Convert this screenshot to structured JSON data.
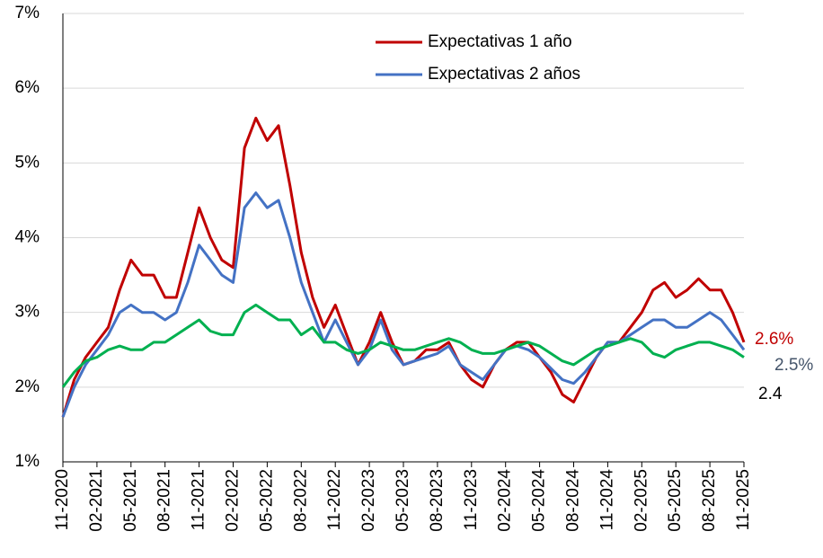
{
  "chart_data": {
    "type": "line",
    "x": [
      "2020-11",
      "2020-12",
      "2021-01",
      "2021-02",
      "2021-03",
      "2021-04",
      "2021-05",
      "2021-06",
      "2021-07",
      "2021-08",
      "2021-09",
      "2021-10",
      "2021-11",
      "2021-12",
      "2022-01",
      "2022-02",
      "2022-03",
      "2022-04",
      "2022-05",
      "2022-06",
      "2022-07",
      "2022-08",
      "2022-09",
      "2022-10",
      "2022-11",
      "2022-12",
      "2023-01",
      "2023-02",
      "2023-03",
      "2023-04",
      "2023-05",
      "2023-06",
      "2023-07",
      "2023-08",
      "2023-09",
      "2023-10",
      "2023-11",
      "2023-12",
      "2024-01",
      "2024-02",
      "2024-03",
      "2024-04",
      "2024-05",
      "2024-06",
      "2024-07",
      "2024-08",
      "2024-09",
      "2024-10",
      "2024-11",
      "2024-12",
      "2025-01",
      "2025-02",
      "2025-03",
      "2025-04",
      "2025-05",
      "2025-06",
      "2025-07",
      "2025-08",
      "2025-09",
      "2025-10",
      "2025-11"
    ],
    "series": [
      {
        "name": "Expectativas 1 año",
        "color": "#c00000",
        "end_label": "2.6%",
        "values": [
          1.6,
          2.1,
          2.4,
          2.6,
          2.8,
          3.3,
          3.7,
          3.5,
          3.5,
          3.2,
          3.2,
          3.8,
          4.4,
          4.0,
          3.7,
          3.6,
          5.2,
          5.6,
          5.3,
          5.5,
          4.7,
          3.8,
          3.2,
          2.8,
          3.1,
          2.7,
          2.3,
          2.6,
          3.0,
          2.6,
          2.3,
          2.35,
          2.5,
          2.5,
          2.6,
          2.3,
          2.1,
          2.0,
          2.3,
          2.5,
          2.6,
          2.6,
          2.4,
          2.2,
          1.9,
          1.8,
          2.1,
          2.4,
          2.6,
          2.6,
          2.8,
          3.0,
          3.3,
          3.4,
          3.2,
          3.3,
          3.45,
          3.3,
          3.3,
          3.0,
          2.6
        ]
      },
      {
        "name": "Expectativas 2 años",
        "color": "#4472c4",
        "end_label": "2.5%",
        "values": [
          1.6,
          2.0,
          2.3,
          2.5,
          2.7,
          3.0,
          3.1,
          3.0,
          3.0,
          2.9,
          3.0,
          3.4,
          3.9,
          3.7,
          3.5,
          3.4,
          4.4,
          4.6,
          4.4,
          4.5,
          4.0,
          3.4,
          3.0,
          2.6,
          2.9,
          2.6,
          2.3,
          2.5,
          2.9,
          2.5,
          2.3,
          2.35,
          2.4,
          2.45,
          2.55,
          2.3,
          2.2,
          2.1,
          2.3,
          2.5,
          2.55,
          2.5,
          2.4,
          2.25,
          2.1,
          2.05,
          2.2,
          2.4,
          2.6,
          2.6,
          2.7,
          2.8,
          2.9,
          2.9,
          2.8,
          2.8,
          2.9,
          3.0,
          2.9,
          2.7,
          2.5
        ]
      },
      {
        "color": "#00b050",
        "end_label": "2.4",
        "values": [
          2.0,
          2.2,
          2.35,
          2.4,
          2.5,
          2.55,
          2.5,
          2.5,
          2.6,
          2.6,
          2.7,
          2.8,
          2.9,
          2.75,
          2.7,
          2.7,
          3.0,
          3.1,
          3.0,
          2.9,
          2.9,
          2.7,
          2.8,
          2.6,
          2.6,
          2.5,
          2.45,
          2.5,
          2.6,
          2.55,
          2.5,
          2.5,
          2.55,
          2.6,
          2.65,
          2.6,
          2.5,
          2.45,
          2.45,
          2.5,
          2.55,
          2.6,
          2.55,
          2.45,
          2.35,
          2.3,
          2.4,
          2.5,
          2.55,
          2.6,
          2.65,
          2.6,
          2.45,
          2.4,
          2.5,
          2.55,
          2.6,
          2.6,
          2.55,
          2.5,
          2.4
        ]
      }
    ],
    "xlim": [
      "2020-11",
      "2025-11"
    ],
    "xticks": [
      {
        "value": "2020-11",
        "label": "11-2020"
      },
      {
        "value": "2021-02",
        "label": "02-2021"
      },
      {
        "value": "2021-05",
        "label": "05-2021"
      },
      {
        "value": "2021-08",
        "label": "08-2021"
      },
      {
        "value": "2021-11",
        "label": "11-2021"
      },
      {
        "value": "2022-02",
        "label": "02-2022"
      },
      {
        "value": "2022-05",
        "label": "05-2022"
      },
      {
        "value": "2022-08",
        "label": "08-2022"
      },
      {
        "value": "2022-11",
        "label": "11-2022"
      },
      {
        "value": "2023-02",
        "label": "02-2023"
      },
      {
        "value": "2023-05",
        "label": "05-2023"
      },
      {
        "value": "2023-08",
        "label": "08-2023"
      },
      {
        "value": "2023-11",
        "label": "11-2023"
      },
      {
        "value": "2024-02",
        "label": "02-2024"
      },
      {
        "value": "2024-05",
        "label": "05-2024"
      },
      {
        "value": "2024-08",
        "label": "08-2024"
      },
      {
        "value": "2024-11",
        "label": "11-2024"
      },
      {
        "value": "2025-02",
        "label": "02-2025"
      },
      {
        "value": "2025-05",
        "label": "05-2025"
      },
      {
        "value": "2025-08",
        "label": "08-2025"
      },
      {
        "value": "2025-11",
        "label": "11-2025"
      }
    ],
    "ylim": [
      1,
      7
    ],
    "yticks": [
      {
        "value": 1,
        "label": "1%"
      },
      {
        "value": 2,
        "label": "2%"
      },
      {
        "value": 3,
        "label": "3%"
      },
      {
        "value": 4,
        "label": "4%"
      },
      {
        "value": 5,
        "label": "5%"
      },
      {
        "value": 6,
        "label": "6%"
      },
      {
        "value": 7,
        "label": "7%"
      }
    ],
    "grid": true,
    "legend": "top"
  }
}
